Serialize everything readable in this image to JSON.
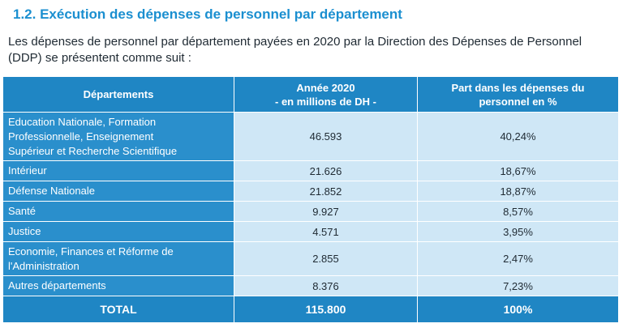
{
  "heading": "1.2. Exécution des dépenses de personnel par département",
  "intro": "Les dépenses de personnel  par département payées en 2020 par la Direction des Dépenses de Personnel (DDP) se présentent comme suit :",
  "table": {
    "headers": {
      "col1": "Départements",
      "col2_line1": "Année 2020",
      "col2_line2": "- en millions de DH -",
      "col3_line1": "Part dans les dépenses du",
      "col3_line2": "personnel en %"
    },
    "rows": [
      {
        "dept_lines": [
          "Education Nationale, Formation",
          "Professionnelle, Enseignement",
          "Supérieur et  Recherche Scientifique"
        ],
        "amount": "46.593",
        "share": "40,24%"
      },
      {
        "dept_lines": [
          "Intérieur"
        ],
        "amount": "21.626",
        "share": "18,67%"
      },
      {
        "dept_lines": [
          "Défense Nationale"
        ],
        "amount": "21.852",
        "share": "18,87%"
      },
      {
        "dept_lines": [
          "Santé"
        ],
        "amount": "9.927",
        "share": "8,57%"
      },
      {
        "dept_lines": [
          "Justice"
        ],
        "amount": "4.571",
        "share": "3,95%"
      },
      {
        "dept_lines": [
          "Economie, Finances et Réforme de",
          "l'Administration"
        ],
        "amount": "2.855",
        "share": "2,47%"
      },
      {
        "dept_lines": [
          "Autres départements"
        ],
        "amount": "8.376",
        "share": "7,23%"
      }
    ],
    "total": {
      "label": "TOTAL",
      "amount": "115.800",
      "share": "100%"
    }
  }
}
